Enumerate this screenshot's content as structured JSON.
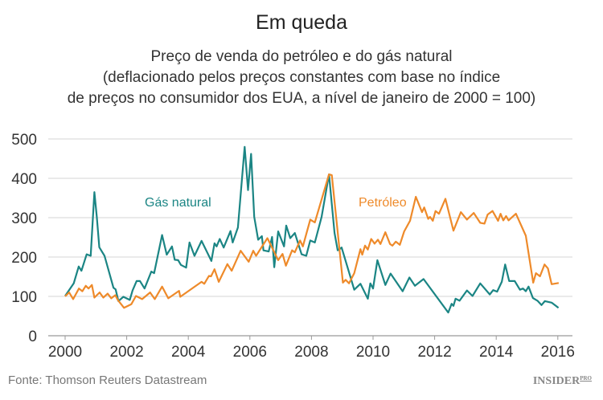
{
  "chart_data": {
    "type": "line",
    "title": "Em queda",
    "subtitle": [
      "Preço de venda do petróleo e do gás natural",
      "(deflacionado pelos preços constantes com base no índice",
      "de preços no consumidor dos EUA, a nível de janeiro de 2000 = 100)"
    ],
    "xlabel": "",
    "ylabel": "",
    "xlim": [
      2000,
      2016
    ],
    "ylim": [
      0,
      500
    ],
    "xticks": [
      "2000",
      "2002",
      "2004",
      "2006",
      "2008",
      "2010",
      "2012",
      "2014",
      "2016"
    ],
    "yticks": [
      "0",
      "100",
      "200",
      "300",
      "400",
      "500"
    ],
    "grid": "horizontal",
    "series": [
      {
        "name": "Gás natural",
        "color": "#1b8584",
        "x": [
          2000.0,
          2000.28,
          2000.44,
          2000.53,
          2000.7,
          2000.83,
          2000.95,
          2001.03,
          2001.11,
          2001.28,
          2001.57,
          2001.64,
          2001.73,
          2001.89,
          2002.1,
          2002.19,
          2002.32,
          2002.43,
          2002.58,
          2002.8,
          2002.89,
          2003.15,
          2003.3,
          2003.47,
          2003.56,
          2003.67,
          2003.76,
          2003.93,
          2004.04,
          2004.2,
          2004.43,
          2004.75,
          2004.85,
          2004.92,
          2005.02,
          2005.15,
          2005.37,
          2005.44,
          2005.61,
          2005.83,
          2005.94,
          2006.04,
          2006.14,
          2006.27,
          2006.39,
          2006.44,
          2006.61,
          2006.72,
          2006.79,
          2006.92,
          2007.11,
          2007.18,
          2007.31,
          2007.46,
          2007.68,
          2007.83,
          2007.96,
          2008.11,
          2008.33,
          2008.57,
          2008.75,
          2008.85,
          2008.98,
          2009.39,
          2009.59,
          2009.83,
          2009.91,
          2010.0,
          2010.14,
          2010.4,
          2010.57,
          2010.96,
          2011.18,
          2011.36,
          2011.64,
          2012.44,
          2012.55,
          2012.61,
          2012.68,
          2012.81,
          2013.05,
          2013.23,
          2013.48,
          2013.79,
          2013.9,
          2014.03,
          2014.18,
          2014.29,
          2014.42,
          2014.6,
          2014.77,
          2014.87,
          2014.96,
          2015.05,
          2015.19,
          2015.34,
          2015.47,
          2015.58,
          2015.8,
          2016.02
        ],
        "y": [
          101,
          133,
          176,
          165,
          207,
          203,
          365,
          302,
          225,
          203,
          122,
          118,
          88,
          99,
          91,
          115,
          139,
          139,
          120,
          163,
          159,
          256,
          206,
          227,
          193,
          192,
          180,
          173,
          237,
          203,
          241,
          190,
          235,
          227,
          246,
          224,
          266,
          237,
          275,
          480,
          370,
          462,
          302,
          244,
          253,
          217,
          214,
          251,
          174,
          265,
          227,
          280,
          248,
          261,
          207,
          203,
          242,
          237,
          302,
          410,
          261,
          217,
          224,
          117,
          132,
          94,
          133,
          120,
          192,
          129,
          158,
          113,
          148,
          127,
          144,
          59,
          81,
          76,
          94,
          89,
          115,
          101,
          133,
          105,
          116,
          112,
          137,
          181,
          139,
          139,
          117,
          120,
          113,
          125,
          96,
          89,
          78,
          88,
          84,
          71
        ]
      },
      {
        "name": "Petróleo",
        "color": "#ee8a2a",
        "x": [
          2000.0,
          2000.13,
          2000.26,
          2000.45,
          2000.56,
          2000.67,
          2000.76,
          2000.87,
          2000.95,
          2001.12,
          2001.24,
          2001.38,
          2001.5,
          2001.63,
          2001.71,
          2001.91,
          2002.15,
          2002.3,
          2002.5,
          2002.76,
          2002.91,
          2003.15,
          2003.35,
          2003.7,
          2003.74,
          2004.43,
          2004.52,
          2004.67,
          2004.74,
          2004.85,
          2004.99,
          2005.27,
          2005.41,
          2005.7,
          2005.96,
          2006.11,
          2006.2,
          2006.57,
          2006.92,
          2007.06,
          2007.17,
          2007.37,
          2007.46,
          2007.63,
          2007.72,
          2007.96,
          2008.11,
          2008.57,
          2008.66,
          2009.02,
          2009.11,
          2009.22,
          2009.39,
          2009.59,
          2009.65,
          2009.74,
          2009.83,
          2009.94,
          2010.05,
          2010.16,
          2010.24,
          2010.4,
          2010.55,
          2010.63,
          2010.74,
          2010.87,
          2011.01,
          2011.2,
          2011.39,
          2011.59,
          2011.66,
          2011.79,
          2011.85,
          2011.94,
          2012.03,
          2012.14,
          2012.35,
          2012.61,
          2012.85,
          2013.05,
          2013.27,
          2013.48,
          2013.62,
          2013.72,
          2013.88,
          2014.06,
          2014.14,
          2014.23,
          2014.32,
          2014.4,
          2014.64,
          2014.96,
          2015.2,
          2015.29,
          2015.42,
          2015.57,
          2015.68,
          2015.8,
          2016.03
        ],
        "y": [
          100,
          110,
          93,
          120,
          113,
          127,
          120,
          129,
          97,
          110,
          97,
          107,
          95,
          103,
          91,
          71,
          80,
          101,
          93,
          110,
          93,
          125,
          95,
          114,
          99,
          137,
          132,
          152,
          151,
          169,
          137,
          182,
          165,
          216,
          188,
          216,
          203,
          248,
          192,
          208,
          178,
          217,
          212,
          242,
          227,
          295,
          288,
          410,
          408,
          135,
          142,
          133,
          159,
          220,
          206,
          229,
          219,
          246,
          234,
          244,
          233,
          263,
          233,
          229,
          239,
          231,
          265,
          292,
          353,
          314,
          326,
          297,
          302,
          292,
          317,
          310,
          348,
          267,
          314,
          295,
          312,
          287,
          285,
          308,
          317,
          292,
          310,
          293,
          304,
          293,
          310,
          254,
          135,
          159,
          151,
          181,
          171,
          131,
          134
        ]
      }
    ]
  },
  "footer": {
    "source": "Fonte: Thomson Reuters Datastream",
    "logo": "INSIDER",
    "logo_sup": "PRO"
  }
}
